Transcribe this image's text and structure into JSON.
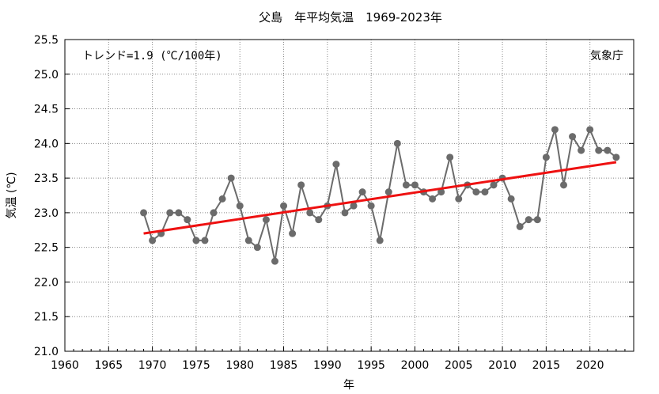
{
  "chart_data": {
    "type": "line",
    "title": "父島　年平均気温　1969-2023年",
    "xlabel": "年",
    "ylabel": "気温 (℃)",
    "xlim": [
      1960,
      2025
    ],
    "ylim": [
      21.0,
      25.5
    ],
    "xticks": [
      1960,
      1965,
      1970,
      1975,
      1980,
      1985,
      1990,
      1995,
      2000,
      2005,
      2010,
      2015,
      2020
    ],
    "yticks": [
      21.0,
      21.5,
      22.0,
      22.5,
      23.0,
      23.5,
      24.0,
      24.5,
      25.0,
      25.5
    ],
    "grid": true,
    "series": [
      {
        "color": "#6b6b6b",
        "x": [
          1969,
          1970,
          1971,
          1972,
          1973,
          1974,
          1975,
          1976,
          1977,
          1978,
          1979,
          1980,
          1981,
          1982,
          1983,
          1984,
          1985,
          1986,
          1987,
          1988,
          1989,
          1990,
          1991,
          1992,
          1993,
          1994,
          1995,
          1996,
          1997,
          1998,
          1999,
          2000,
          2001,
          2002,
          2003,
          2004,
          2005,
          2006,
          2007,
          2008,
          2009,
          2010,
          2011,
          2012,
          2013,
          2014,
          2015,
          2016,
          2017,
          2018,
          2019,
          2020,
          2021,
          2022,
          2023
        ],
        "y": [
          23.0,
          22.6,
          22.7,
          23.0,
          23.0,
          22.9,
          22.6,
          22.6,
          23.0,
          23.2,
          23.5,
          23.1,
          22.6,
          22.5,
          22.9,
          22.3,
          23.1,
          22.7,
          23.4,
          23.0,
          22.9,
          23.1,
          23.7,
          23.0,
          23.1,
          23.3,
          23.1,
          22.6,
          23.3,
          24.0,
          23.4,
          23.4,
          23.3,
          23.2,
          23.3,
          23.8,
          23.2,
          23.4,
          23.3,
          23.3,
          23.4,
          23.5,
          23.2,
          22.8,
          22.9,
          22.9,
          23.8,
          24.2,
          23.4,
          24.1,
          23.9,
          24.2,
          23.9,
          23.9,
          23.8
        ]
      }
    ],
    "trend": {
      "color": "#ee1111",
      "x": [
        1969,
        2023
      ],
      "y": [
        22.7,
        23.73
      ]
    },
    "annotation": "トレンド=1.9 (℃/100年)",
    "source_label": "気象庁"
  }
}
